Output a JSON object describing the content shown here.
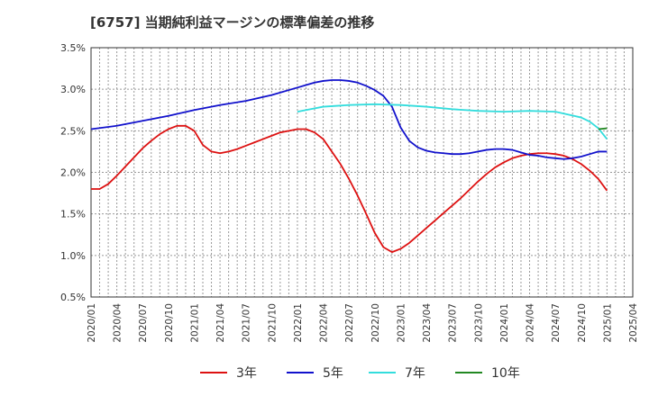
{
  "title": "[6757]  当期純利益マージンの標準偏差の推移",
  "chart_data": {
    "type": "line",
    "title": "[6757]  当期純利益マージンの標準偏差の推移",
    "xlabel": "",
    "ylabel": "",
    "ylim": [
      0.5,
      3.5
    ],
    "y_ticks": [
      "0.5%",
      "1.0%",
      "1.5%",
      "2.0%",
      "2.5%",
      "3.0%",
      "3.5%"
    ],
    "y_tick_values": [
      0.5,
      1.0,
      1.5,
      2.0,
      2.5,
      3.0,
      3.5
    ],
    "x_ticks": [
      "2020/01",
      "2020/04",
      "2020/07",
      "2020/10",
      "2021/01",
      "2021/04",
      "2021/07",
      "2021/10",
      "2022/01",
      "2022/04",
      "2022/07",
      "2022/10",
      "2023/01",
      "2023/04",
      "2023/07",
      "2023/10",
      "2024/01",
      "2024/04",
      "2024/07",
      "2024/10",
      "2025/01",
      "2025/04"
    ],
    "grid": true,
    "legend_position": "bottom",
    "series": [
      {
        "name": "3年",
        "color": "#dd1111",
        "x": [
          "2020/01",
          "2020/02",
          "2020/03",
          "2020/04",
          "2020/05",
          "2020/06",
          "2020/07",
          "2020/08",
          "2020/09",
          "2020/10",
          "2020/11",
          "2020/12",
          "2021/01",
          "2021/02",
          "2021/03",
          "2021/04",
          "2021/05",
          "2021/06",
          "2021/07",
          "2021/08",
          "2021/09",
          "2021/10",
          "2021/11",
          "2021/12",
          "2022/01",
          "2022/02",
          "2022/03",
          "2022/04",
          "2022/05",
          "2022/06",
          "2022/07",
          "2022/08",
          "2022/09",
          "2022/10",
          "2022/11",
          "2022/12",
          "2023/01",
          "2023/02",
          "2023/03",
          "2023/04",
          "2023/05",
          "2023/06",
          "2023/07",
          "2023/08",
          "2023/09",
          "2023/10",
          "2023/11",
          "2023/12",
          "2024/01",
          "2024/02",
          "2024/03",
          "2024/04",
          "2024/05",
          "2024/06",
          "2024/07",
          "2024/08",
          "2024/09",
          "2024/10",
          "2024/11",
          "2024/12",
          "2025/01"
        ],
        "values": [
          1.8,
          1.8,
          1.86,
          1.96,
          2.07,
          2.18,
          2.29,
          2.38,
          2.46,
          2.52,
          2.56,
          2.56,
          2.5,
          2.33,
          2.25,
          2.23,
          2.25,
          2.28,
          2.32,
          2.36,
          2.4,
          2.44,
          2.48,
          2.5,
          2.52,
          2.52,
          2.48,
          2.4,
          2.25,
          2.1,
          1.92,
          1.72,
          1.5,
          1.27,
          1.1,
          1.04,
          1.08,
          1.15,
          1.24,
          1.33,
          1.42,
          1.51,
          1.6,
          1.69,
          1.79,
          1.89,
          1.98,
          2.06,
          2.12,
          2.17,
          2.2,
          2.22,
          2.23,
          2.23,
          2.22,
          2.2,
          2.16,
          2.1,
          2.02,
          1.92,
          1.78
        ]
      },
      {
        "name": "5年",
        "color": "#1111cc",
        "x": [
          "2020/01",
          "2020/04",
          "2020/07",
          "2020/10",
          "2021/01",
          "2021/04",
          "2021/07",
          "2021/10",
          "2022/01",
          "2022/02",
          "2022/03",
          "2022/04",
          "2022/05",
          "2022/06",
          "2022/07",
          "2022/08",
          "2022/09",
          "2022/10",
          "2022/11",
          "2022/12",
          "2023/01",
          "2023/02",
          "2023/03",
          "2023/04",
          "2023/05",
          "2023/06",
          "2023/07",
          "2023/08",
          "2023/09",
          "2023/10",
          "2023/11",
          "2023/12",
          "2024/01",
          "2024/02",
          "2024/03",
          "2024/04",
          "2024/05",
          "2024/06",
          "2024/07",
          "2024/08",
          "2024/09",
          "2024/10",
          "2024/11",
          "2024/12",
          "2025/01"
        ],
        "values": [
          2.52,
          2.56,
          2.62,
          2.68,
          2.75,
          2.81,
          2.86,
          2.93,
          3.02,
          3.05,
          3.08,
          3.1,
          3.11,
          3.11,
          3.1,
          3.08,
          3.04,
          2.99,
          2.92,
          2.79,
          2.54,
          2.38,
          2.3,
          2.26,
          2.24,
          2.23,
          2.22,
          2.22,
          2.23,
          2.25,
          2.27,
          2.28,
          2.28,
          2.27,
          2.24,
          2.21,
          2.2,
          2.18,
          2.17,
          2.16,
          2.17,
          2.19,
          2.22,
          2.25,
          2.25
        ]
      },
      {
        "name": "7年",
        "color": "#33dddd",
        "x": [
          "2022/01",
          "2022/04",
          "2022/07",
          "2022/10",
          "2023/01",
          "2023/04",
          "2023/07",
          "2023/10",
          "2024/01",
          "2024/04",
          "2024/07",
          "2024/10",
          "2024/11",
          "2024/12",
          "2025/01"
        ],
        "values": [
          2.73,
          2.79,
          2.81,
          2.82,
          2.81,
          2.79,
          2.76,
          2.74,
          2.73,
          2.74,
          2.73,
          2.66,
          2.61,
          2.53,
          2.4
        ]
      },
      {
        "name": "10年",
        "color": "#228822",
        "x": [
          "2024/12",
          "2025/01"
        ],
        "values": [
          2.52,
          2.53
        ]
      }
    ]
  }
}
